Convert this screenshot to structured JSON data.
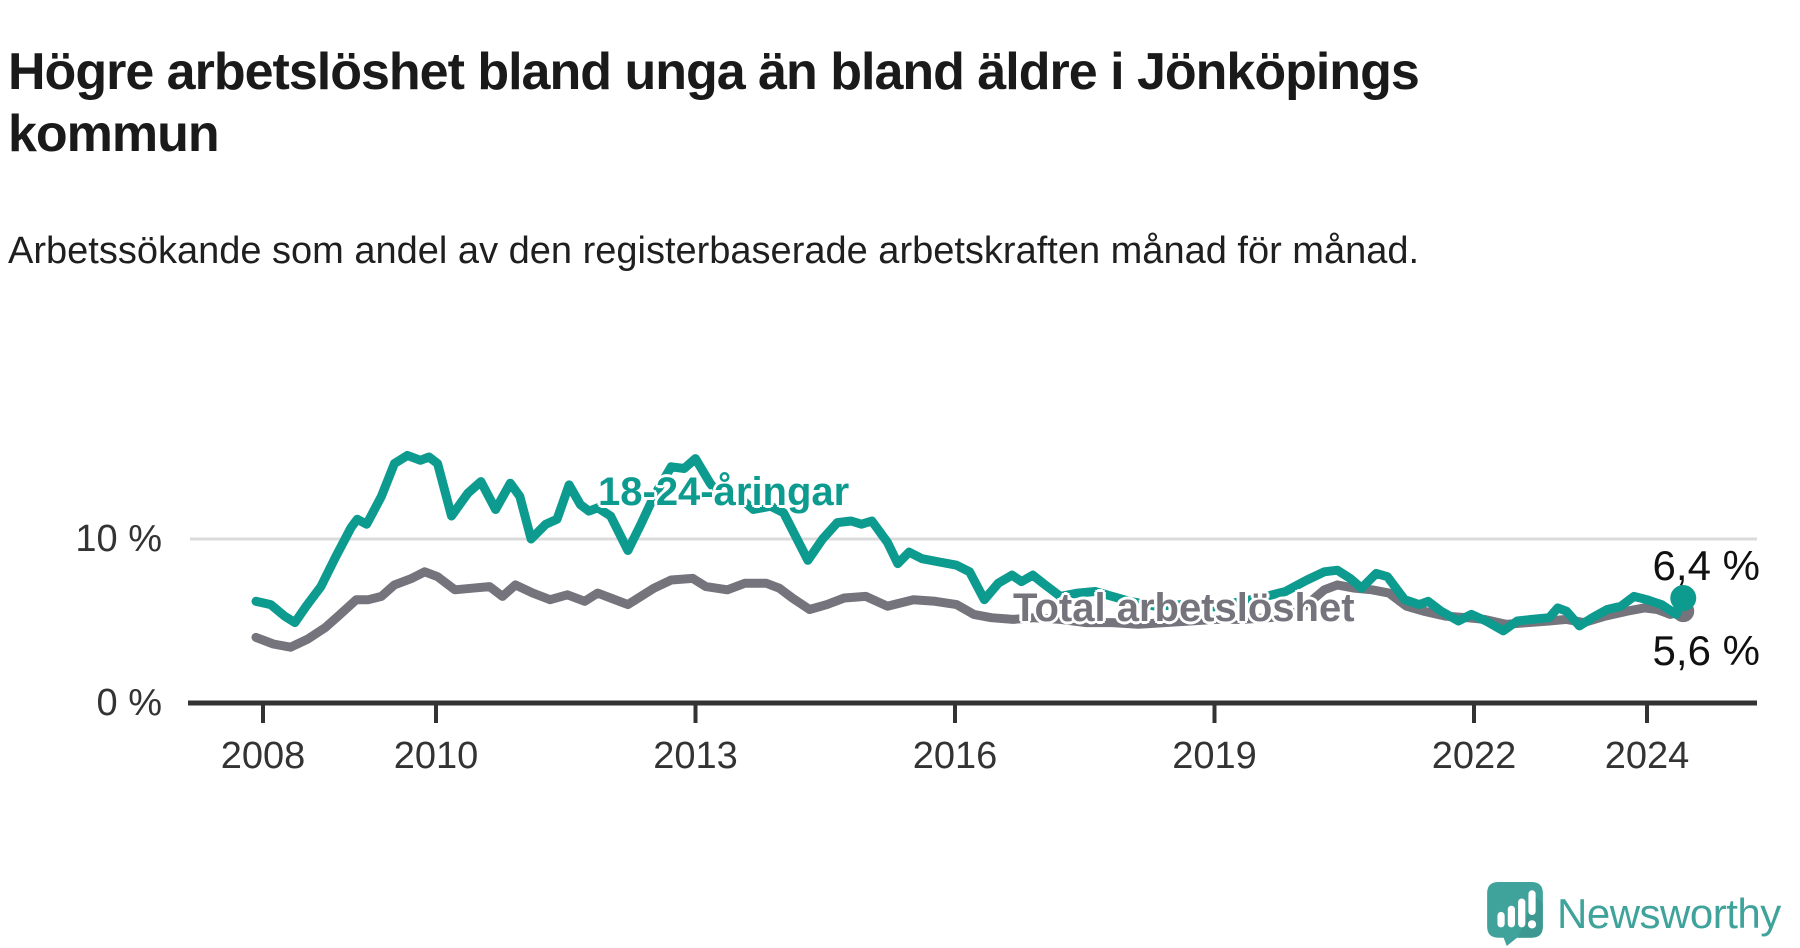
{
  "chart_data": {
    "type": "line",
    "title": "Högre arbetslöshet bland unga än bland äldre i Jönköpings kommun",
    "subtitle": "Arbetssökande som andel av den registerbaserade arbetskraften månad för månad.",
    "unit": "%",
    "grid": "single horizontal gridline at 10 %",
    "legend_position": "inline labels on lines",
    "x_axis": {
      "range_start": 2008,
      "range_end": 2024.6,
      "tick_years": [
        2008,
        2010,
        2013,
        2016,
        2019,
        2022,
        2024
      ]
    },
    "y_axis": {
      "ticks": [
        {
          "value": 0,
          "label": "0 %"
        },
        {
          "value": 10,
          "label": "10 %"
        }
      ],
      "visible_max": 16
    },
    "series": [
      {
        "name": "18-24-åringar",
        "color": "#0d9b8f",
        "end_value": 6.4,
        "end_label": "6,4 %",
        "points": [
          [
            2008.0,
            6.2
          ],
          [
            2008.17,
            6.0
          ],
          [
            2008.33,
            5.3
          ],
          [
            2008.45,
            4.9
          ],
          [
            2008.58,
            5.9
          ],
          [
            2008.75,
            7.1
          ],
          [
            2008.92,
            8.9
          ],
          [
            2009.1,
            10.7
          ],
          [
            2009.17,
            11.2
          ],
          [
            2009.28,
            10.9
          ],
          [
            2009.45,
            12.6
          ],
          [
            2009.6,
            14.6
          ],
          [
            2009.75,
            15.1
          ],
          [
            2009.9,
            14.8
          ],
          [
            2010.0,
            15.0
          ],
          [
            2010.1,
            14.6
          ],
          [
            2010.26,
            11.4
          ],
          [
            2010.45,
            12.8
          ],
          [
            2010.6,
            13.5
          ],
          [
            2010.77,
            11.8
          ],
          [
            2010.94,
            13.4
          ],
          [
            2011.05,
            12.6
          ],
          [
            2011.18,
            10.0
          ],
          [
            2011.35,
            10.9
          ],
          [
            2011.48,
            11.2
          ],
          [
            2011.62,
            13.3
          ],
          [
            2011.75,
            12.1
          ],
          [
            2011.85,
            11.7
          ],
          [
            2011.95,
            11.9
          ],
          [
            2012.1,
            11.4
          ],
          [
            2012.3,
            9.3
          ],
          [
            2012.45,
            10.9
          ],
          [
            2012.6,
            12.6
          ],
          [
            2012.8,
            14.4
          ],
          [
            2012.95,
            14.3
          ],
          [
            2013.08,
            14.9
          ],
          [
            2013.25,
            13.4
          ],
          [
            2013.4,
            12.4
          ],
          [
            2013.55,
            12.7
          ],
          [
            2013.75,
            11.8
          ],
          [
            2013.95,
            12.0
          ],
          [
            2014.1,
            11.6
          ],
          [
            2014.38,
            8.7
          ],
          [
            2014.55,
            10.0
          ],
          [
            2014.72,
            11.0
          ],
          [
            2014.88,
            11.1
          ],
          [
            2015.0,
            10.9
          ],
          [
            2015.12,
            11.1
          ],
          [
            2015.3,
            9.8
          ],
          [
            2015.42,
            8.5
          ],
          [
            2015.55,
            9.2
          ],
          [
            2015.7,
            8.8
          ],
          [
            2015.9,
            8.6
          ],
          [
            2016.1,
            8.4
          ],
          [
            2016.25,
            8.0
          ],
          [
            2016.42,
            6.3
          ],
          [
            2016.58,
            7.3
          ],
          [
            2016.74,
            7.8
          ],
          [
            2016.85,
            7.4
          ],
          [
            2016.98,
            7.8
          ],
          [
            2017.1,
            7.3
          ],
          [
            2017.3,
            6.5
          ],
          [
            2017.5,
            6.7
          ],
          [
            2017.7,
            6.8
          ],
          [
            2017.9,
            6.5
          ],
          [
            2018.1,
            6.2
          ],
          [
            2018.4,
            5.9
          ],
          [
            2018.7,
            6.0
          ],
          [
            2019.0,
            5.8
          ],
          [
            2019.3,
            6.1
          ],
          [
            2019.6,
            6.4
          ],
          [
            2019.9,
            6.8
          ],
          [
            2020.15,
            7.5
          ],
          [
            2020.35,
            8.0
          ],
          [
            2020.5,
            8.1
          ],
          [
            2020.65,
            7.6
          ],
          [
            2020.78,
            7.0
          ],
          [
            2020.95,
            7.9
          ],
          [
            2021.08,
            7.7
          ],
          [
            2021.28,
            6.3
          ],
          [
            2021.45,
            6.0
          ],
          [
            2021.55,
            6.2
          ],
          [
            2021.7,
            5.6
          ],
          [
            2021.9,
            5.0
          ],
          [
            2022.05,
            5.4
          ],
          [
            2022.22,
            5.0
          ],
          [
            2022.42,
            4.4
          ],
          [
            2022.58,
            5.0
          ],
          [
            2022.75,
            5.1
          ],
          [
            2022.95,
            5.2
          ],
          [
            2023.05,
            5.8
          ],
          [
            2023.15,
            5.6
          ],
          [
            2023.3,
            4.7
          ],
          [
            2023.45,
            5.2
          ],
          [
            2023.62,
            5.7
          ],
          [
            2023.78,
            5.9
          ],
          [
            2023.93,
            6.5
          ],
          [
            2024.08,
            6.3
          ],
          [
            2024.25,
            6.0
          ],
          [
            2024.42,
            5.4
          ],
          [
            2024.5,
            6.4
          ]
        ]
      },
      {
        "name": "Total arbetslöshet",
        "color": "#75737b",
        "end_value": 5.6,
        "end_label": "5,6 %",
        "points": [
          [
            2008.0,
            4.0
          ],
          [
            2008.2,
            3.6
          ],
          [
            2008.4,
            3.4
          ],
          [
            2008.6,
            3.9
          ],
          [
            2008.8,
            4.6
          ],
          [
            2008.95,
            5.3
          ],
          [
            2009.16,
            6.3
          ],
          [
            2009.3,
            6.3
          ],
          [
            2009.45,
            6.5
          ],
          [
            2009.6,
            7.2
          ],
          [
            2009.8,
            7.6
          ],
          [
            2009.95,
            8.0
          ],
          [
            2010.1,
            7.7
          ],
          [
            2010.3,
            6.9
          ],
          [
            2010.5,
            7.0
          ],
          [
            2010.7,
            7.1
          ],
          [
            2010.85,
            6.5
          ],
          [
            2011.0,
            7.2
          ],
          [
            2011.2,
            6.7
          ],
          [
            2011.4,
            6.3
          ],
          [
            2011.6,
            6.6
          ],
          [
            2011.8,
            6.2
          ],
          [
            2011.95,
            6.7
          ],
          [
            2012.1,
            6.4
          ],
          [
            2012.3,
            6.0
          ],
          [
            2012.6,
            7.0
          ],
          [
            2012.8,
            7.5
          ],
          [
            2013.05,
            7.6
          ],
          [
            2013.2,
            7.1
          ],
          [
            2013.45,
            6.9
          ],
          [
            2013.65,
            7.3
          ],
          [
            2013.9,
            7.3
          ],
          [
            2014.05,
            7.0
          ],
          [
            2014.2,
            6.4
          ],
          [
            2014.4,
            5.7
          ],
          [
            2014.6,
            6.0
          ],
          [
            2014.8,
            6.4
          ],
          [
            2015.05,
            6.5
          ],
          [
            2015.3,
            5.9
          ],
          [
            2015.6,
            6.3
          ],
          [
            2015.85,
            6.2
          ],
          [
            2016.1,
            6.0
          ],
          [
            2016.3,
            5.4
          ],
          [
            2016.5,
            5.2
          ],
          [
            2016.75,
            5.1
          ],
          [
            2017.0,
            5.2
          ],
          [
            2017.3,
            5.1
          ],
          [
            2017.6,
            4.9
          ],
          [
            2017.9,
            4.9
          ],
          [
            2018.2,
            4.8
          ],
          [
            2018.5,
            4.9
          ],
          [
            2018.8,
            5.0
          ],
          [
            2019.1,
            5.1
          ],
          [
            2019.4,
            5.1
          ],
          [
            2019.7,
            5.2
          ],
          [
            2019.95,
            5.3
          ],
          [
            2020.15,
            6.0
          ],
          [
            2020.35,
            6.9
          ],
          [
            2020.5,
            7.2
          ],
          [
            2020.7,
            7.0
          ],
          [
            2020.9,
            6.9
          ],
          [
            2021.1,
            6.7
          ],
          [
            2021.3,
            5.9
          ],
          [
            2021.5,
            5.6
          ],
          [
            2021.75,
            5.3
          ],
          [
            2022.0,
            5.2
          ],
          [
            2022.2,
            5.1
          ],
          [
            2022.45,
            4.8
          ],
          [
            2022.7,
            4.9
          ],
          [
            2022.95,
            5.0
          ],
          [
            2023.15,
            5.1
          ],
          [
            2023.35,
            4.9
          ],
          [
            2023.6,
            5.3
          ],
          [
            2023.85,
            5.6
          ],
          [
            2024.05,
            5.8
          ],
          [
            2024.2,
            5.7
          ],
          [
            2024.35,
            5.4
          ],
          [
            2024.5,
            5.6
          ]
        ]
      }
    ],
    "colors": {
      "axis": "#333333",
      "gridline": "#dbdbdb",
      "tick_text": "#333333",
      "title_text": "#1a1a1a"
    }
  },
  "branding": {
    "logo_text": "Newsworthy",
    "logo_color": "#40a39b",
    "logo_icon": "bar-chart-speech-bubble-icon"
  }
}
